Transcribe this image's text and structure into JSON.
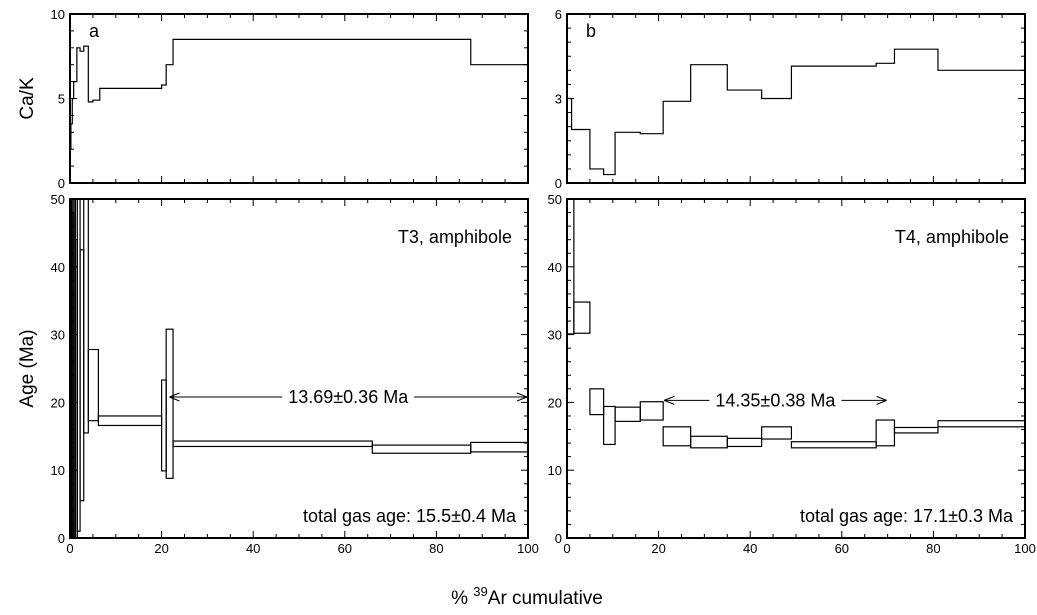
{
  "xlabel": {
    "prefix": "% ",
    "sup": "39",
    "suffix": "Ar cumulative"
  },
  "chart_data": [
    {
      "id": "a-ca",
      "type": "line",
      "panel_label": "a",
      "ylabel": "Ca/K",
      "xlim": [
        0,
        100
      ],
      "ylim": [
        0,
        10
      ],
      "yticks": [
        0,
        5,
        10
      ],
      "xticks": [],
      "step_series": [
        {
          "x0": 0.0,
          "x1": 0.2,
          "y": 2.0
        },
        {
          "x0": 0.2,
          "x1": 0.5,
          "y": 3.5
        },
        {
          "x0": 0.5,
          "x1": 0.8,
          "y": 5.0
        },
        {
          "x0": 0.8,
          "x1": 1.5,
          "y": 6.0
        },
        {
          "x0": 1.5,
          "x1": 2.2,
          "y": 8.0
        },
        {
          "x0": 2.2,
          "x1": 3.0,
          "y": 7.8
        },
        {
          "x0": 3.0,
          "x1": 4.0,
          "y": 8.1
        },
        {
          "x0": 4.0,
          "x1": 5.0,
          "y": 4.8
        },
        {
          "x0": 5.0,
          "x1": 6.5,
          "y": 4.9
        },
        {
          "x0": 6.5,
          "x1": 20.0,
          "y": 5.6
        },
        {
          "x0": 20.0,
          "x1": 21.0,
          "y": 5.8
        },
        {
          "x0": 21.0,
          "x1": 22.5,
          "y": 7.0
        },
        {
          "x0": 22.5,
          "x1": 87.5,
          "y": 8.5
        },
        {
          "x0": 87.5,
          "x1": 100.0,
          "y": 7.0
        }
      ]
    },
    {
      "id": "a-age",
      "type": "line",
      "ylabel": "Age (Ma)",
      "xlim": [
        0,
        100
      ],
      "ylim": [
        0,
        50
      ],
      "yticks": [
        0,
        10,
        20,
        30,
        40,
        50
      ],
      "xticks": [
        0,
        20,
        40,
        60,
        80,
        100
      ],
      "sample_label": "T3, amphibole",
      "plateau_label": "13.69±0.36 Ma",
      "plateau_x": [
        21.5,
        100
      ],
      "plateau_y": 20.8,
      "total_gas_label": "total gas age: 15.5±0.4 Ma",
      "steps": [
        {
          "x0": 0.0,
          "x1": 0.3,
          "lo": 0,
          "hi": 50
        },
        {
          "x0": 0.3,
          "x1": 0.6,
          "lo": 0,
          "hi": 50
        },
        {
          "x0": 0.6,
          "x1": 0.9,
          "lo": 0,
          "hi": 48
        },
        {
          "x0": 0.9,
          "x1": 1.2,
          "lo": 0,
          "hi": 50
        },
        {
          "x0": 1.2,
          "x1": 1.6,
          "lo": 0,
          "hi": 44
        },
        {
          "x0": 1.6,
          "x1": 2.2,
          "lo": 1,
          "hi": 50
        },
        {
          "x0": 2.2,
          "x1": 3.0,
          "lo": 5.5,
          "hi": 42.5
        },
        {
          "x0": 3.0,
          "x1": 4.0,
          "lo": 15.5,
          "hi": 50
        },
        {
          "x0": 4.0,
          "x1": 6.2,
          "lo": 17.3,
          "hi": 27.8
        },
        {
          "x0": 6.2,
          "x1": 20.0,
          "lo": 16.6,
          "hi": 18.0
        },
        {
          "x0": 20.0,
          "x1": 21.0,
          "lo": 9.9,
          "hi": 23.3
        },
        {
          "x0": 21.0,
          "x1": 22.5,
          "lo": 8.8,
          "hi": 30.8
        },
        {
          "x0": 22.5,
          "x1": 66.0,
          "lo": 13.5,
          "hi": 14.3
        },
        {
          "x0": 66.0,
          "x1": 87.5,
          "lo": 12.5,
          "hi": 13.7
        },
        {
          "x0": 87.5,
          "x1": 100.0,
          "lo": 12.7,
          "hi": 14.1
        }
      ]
    },
    {
      "id": "b-ca",
      "type": "line",
      "panel_label": "b",
      "ylabel": "",
      "xlim": [
        0,
        100
      ],
      "ylim": [
        0,
        6
      ],
      "yticks": [
        0,
        3,
        6
      ],
      "xticks": [],
      "step_series": [
        {
          "x0": 0.0,
          "x1": 1.0,
          "y": 3.0
        },
        {
          "x0": 1.0,
          "x1": 5.0,
          "y": 1.9
        },
        {
          "x0": 5.0,
          "x1": 8.0,
          "y": 0.5
        },
        {
          "x0": 8.0,
          "x1": 10.5,
          "y": 0.3
        },
        {
          "x0": 10.5,
          "x1": 16.0,
          "y": 1.8
        },
        {
          "x0": 16.0,
          "x1": 21.0,
          "y": 1.75
        },
        {
          "x0": 21.0,
          "x1": 27.0,
          "y": 2.9
        },
        {
          "x0": 27.0,
          "x1": 35.0,
          "y": 4.2
        },
        {
          "x0": 35.0,
          "x1": 42.5,
          "y": 3.3
        },
        {
          "x0": 42.5,
          "x1": 49.0,
          "y": 3.0
        },
        {
          "x0": 49.0,
          "x1": 67.5,
          "y": 4.15
        },
        {
          "x0": 67.5,
          "x1": 71.5,
          "y": 4.25
        },
        {
          "x0": 71.5,
          "x1": 81.0,
          "y": 4.75
        },
        {
          "x0": 81.0,
          "x1": 100.0,
          "y": 4.0
        }
      ]
    },
    {
      "id": "b-age",
      "type": "line",
      "ylabel": "",
      "xlim": [
        0,
        100
      ],
      "ylim": [
        0,
        50
      ],
      "yticks": [
        0,
        10,
        20,
        30,
        40,
        50
      ],
      "xticks": [
        0,
        20,
        40,
        60,
        80,
        100
      ],
      "sample_label": "T4, amphibole",
      "plateau_label": "14.35±0.38 Ma",
      "plateau_x": [
        21,
        70
      ],
      "plateau_y": 20.3,
      "total_gas_label": "total gas age: 17.1±0.3 Ma",
      "steps": [
        {
          "x0": 0.0,
          "x1": 1.5,
          "lo": 30.1,
          "hi": 50
        },
        {
          "x0": 1.5,
          "x1": 5.0,
          "lo": 30.2,
          "hi": 34.8
        },
        {
          "x0": 5.0,
          "x1": 8.0,
          "lo": 18.2,
          "hi": 22.0
        },
        {
          "x0": 8.0,
          "x1": 10.5,
          "lo": 13.8,
          "hi": 19.4
        },
        {
          "x0": 10.5,
          "x1": 16.0,
          "lo": 17.2,
          "hi": 19.3
        },
        {
          "x0": 16.0,
          "x1": 21.0,
          "lo": 17.4,
          "hi": 20.1
        },
        {
          "x0": 21.0,
          "x1": 27.0,
          "lo": 13.6,
          "hi": 16.4
        },
        {
          "x0": 27.0,
          "x1": 35.0,
          "lo": 13.3,
          "hi": 15.0
        },
        {
          "x0": 35.0,
          "x1": 42.5,
          "lo": 13.5,
          "hi": 14.7
        },
        {
          "x0": 42.5,
          "x1": 49.0,
          "lo": 14.6,
          "hi": 16.4
        },
        {
          "x0": 49.0,
          "x1": 67.5,
          "lo": 13.3,
          "hi": 14.2
        },
        {
          "x0": 67.5,
          "x1": 71.5,
          "lo": 13.6,
          "hi": 17.4
        },
        {
          "x0": 71.5,
          "x1": 81.0,
          "lo": 15.5,
          "hi": 16.3
        },
        {
          "x0": 81.0,
          "x1": 100.0,
          "lo": 16.4,
          "hi": 17.3
        }
      ]
    }
  ]
}
